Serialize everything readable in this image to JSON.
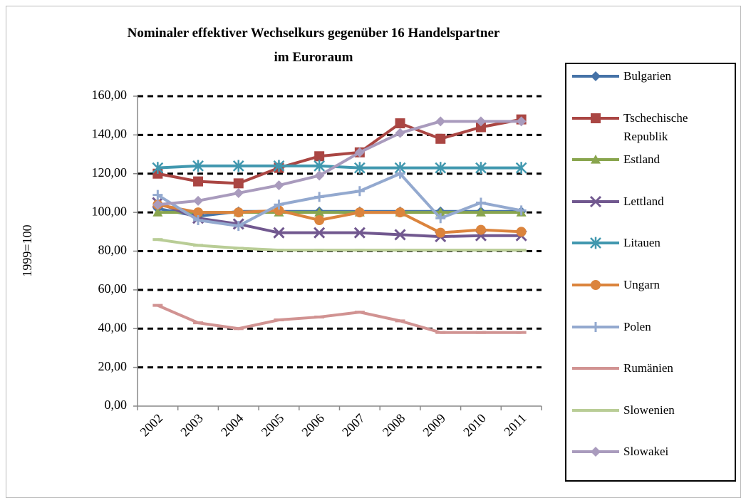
{
  "chart_data": {
    "type": "line",
    "title": "Nominaler effektiver Wechselkurs gegenüber 16 Handelspartner im Euroraum",
    "y_label": "1999=100",
    "categories": [
      "2002",
      "2003",
      "2004",
      "2005",
      "2006",
      "2007",
      "2008",
      "2009",
      "2010",
      "2011"
    ],
    "ylim": [
      0,
      160
    ],
    "yticks": [
      {
        "value": 0,
        "label": "0,00"
      },
      {
        "value": 20,
        "label": "20,00"
      },
      {
        "value": 40,
        "label": "40,00"
      },
      {
        "value": 60,
        "label": "60,00"
      },
      {
        "value": 80,
        "label": "80,00"
      },
      {
        "value": 100,
        "label": "100,00"
      },
      {
        "value": 120,
        "label": "120,00"
      },
      {
        "value": 140,
        "label": "140,00"
      },
      {
        "value": 160,
        "label": "160,00"
      }
    ],
    "grid": true,
    "legend": "right",
    "series": [
      {
        "name": "Bulgarien",
        "color": "#4572a7",
        "marker": "diamond",
        "values": [
          102,
          98,
          100.5,
          100.5,
          100.5,
          100.5,
          100.5,
          100.5,
          100.5,
          100.5
        ]
      },
      {
        "name": "Tschechische Republik",
        "color": "#aa4643",
        "marker": "square",
        "values": [
          120,
          116,
          115,
          123,
          129,
          131,
          146,
          138,
          144,
          148
        ]
      },
      {
        "name": "Estland",
        "color": "#89a54e",
        "marker": "triangle",
        "values": [
          100,
          100,
          100,
          100,
          100,
          100,
          100,
          100,
          100,
          100
        ]
      },
      {
        "name": "Lettland",
        "color": "#71588f",
        "marker": "x",
        "values": [
          105,
          97,
          94,
          89.5,
          89.5,
          89.5,
          88.5,
          87.5,
          88,
          88
        ]
      },
      {
        "name": "Litauen",
        "color": "#4198af",
        "marker": "star",
        "values": [
          123,
          124,
          124,
          124,
          124,
          123,
          123,
          123,
          123,
          123
        ]
      },
      {
        "name": "Ungarn",
        "color": "#db843d",
        "marker": "circle",
        "values": [
          104,
          100,
          100,
          101,
          96,
          100,
          100,
          89.5,
          91,
          90
        ]
      },
      {
        "name": "Polen",
        "color": "#93a9cf",
        "marker": "plus",
        "values": [
          109,
          96,
          93,
          104,
          108,
          111,
          120,
          97,
          105,
          101
        ]
      },
      {
        "name": "Rumänien",
        "color": "#d19392",
        "marker": "dash",
        "values": [
          52,
          43,
          40,
          44.5,
          46,
          48.5,
          44,
          38,
          38,
          38
        ]
      },
      {
        "name": "Slowenien",
        "color": "#b9cd96",
        "marker": "dash",
        "values": [
          86,
          83,
          81.5,
          80.5,
          80.5,
          80.5,
          80.5,
          80.5,
          80.5,
          80.5
        ]
      },
      {
        "name": "Slowakei",
        "color": "#a99bbd",
        "marker": "diamond",
        "values": [
          104,
          106,
          110,
          114,
          119,
          131,
          141,
          147,
          147,
          147
        ]
      }
    ]
  }
}
